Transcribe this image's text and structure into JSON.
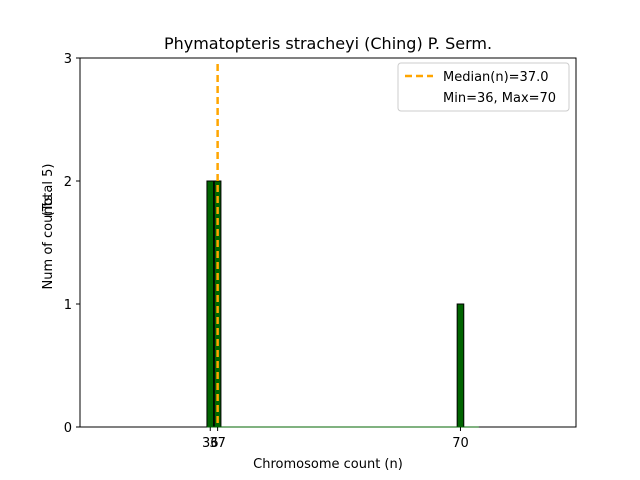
{
  "chart_data": {
    "type": "bar",
    "title": "Phymatopteris stracheyi (Ching) P. Serm.",
    "xlabel": "Chromosome count (n)",
    "ylabel": "Num of counts",
    "ylabel_note": "(Total 5)",
    "xlim": [
      18.3,
      85.7
    ],
    "ylim": [
      0,
      3
    ],
    "yticks": [
      0,
      1,
      2,
      3
    ],
    "xticks": [
      36,
      37,
      70
    ],
    "bars": [
      {
        "x": 36,
        "count": 2
      },
      {
        "x": 37,
        "count": 2
      },
      {
        "x": 70,
        "count": 1
      }
    ],
    "bar_color": "#006400",
    "median": {
      "value": 37.0,
      "label": "Median(n)=37.0",
      "color": "#FFA500"
    },
    "range_text": "Min=36, Max=70",
    "legend_position": "upper right",
    "grid": false
  }
}
